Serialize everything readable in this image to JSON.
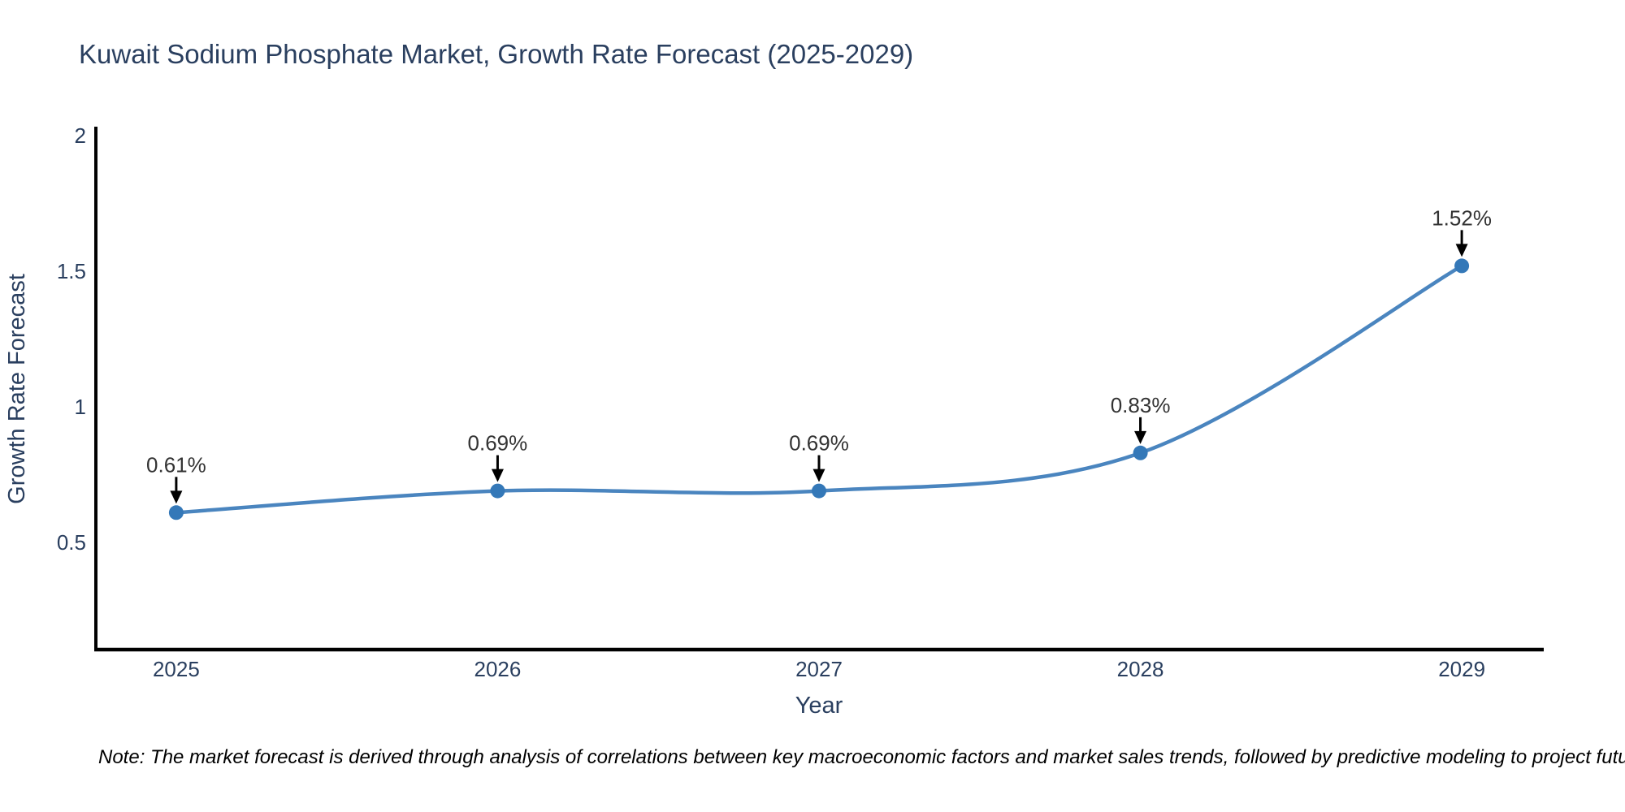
{
  "title": "Kuwait Sodium Phosphate Market, Growth Rate Forecast (2025-2029)",
  "note": "Note: The market forecast is derived through analysis of correlations between key macroeconomic factors and market sales trends, followed by predictive modeling to project future sales",
  "chart_data": {
    "type": "line",
    "line_shape": "spline",
    "title": "Kuwait Sodium Phosphate Market, Growth Rate Forecast (2025-2029)",
    "xlabel": "Year",
    "ylabel": "Growth Rate Forecast",
    "x": [
      2025,
      2026,
      2027,
      2028,
      2029
    ],
    "y": [
      0.61,
      0.69,
      0.69,
      0.83,
      1.52
    ],
    "point_labels": [
      "0.61%",
      "0.69%",
      "0.69%",
      "0.83%",
      "1.52%"
    ],
    "xticks": [
      "2025",
      "2026",
      "2027",
      "2028",
      "2029"
    ],
    "xtick_values": [
      2025,
      2026,
      2027,
      2028,
      2029
    ],
    "yticks": [
      "0.5",
      "1",
      "1.5",
      "2"
    ],
    "ytick_values": [
      0.5,
      1,
      1.5,
      2
    ],
    "xlim": [
      2024.75,
      2029.25
    ],
    "ylim": [
      0.105,
      2.027
    ],
    "grid": false,
    "legend": "none",
    "colors": {
      "line": "#4a85bf",
      "marker": "#3478b8",
      "axis_line": "#000000",
      "arrow": "#000000",
      "tick_text": "#2a3f5f",
      "title_text": "#2a3f5f",
      "annotation_text": "#333333",
      "note_text": "#000000"
    }
  }
}
